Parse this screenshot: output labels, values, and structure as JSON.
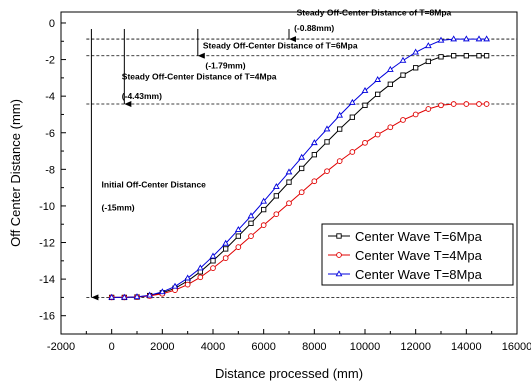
{
  "chart_data": {
    "type": "line",
    "title": "",
    "xlabel": "Distance processed (mm)",
    "ylabel": "Off Center Distance (mm)",
    "xlim": [
      -2000,
      16000
    ],
    "ylim": [
      -17,
      0.6
    ],
    "xticks": [
      -2000,
      0,
      2000,
      4000,
      6000,
      8000,
      10000,
      12000,
      14000,
      16000
    ],
    "yticks": [
      0,
      -2,
      -4,
      -6,
      -8,
      -10,
      -12,
      -14,
      -16
    ],
    "grid": false,
    "legend_position": "bottom-right",
    "series": [
      {
        "name": "Center Wave T=6Mpa",
        "color": "#000000",
        "marker": "square",
        "x": [
          0,
          500,
          1000,
          1500,
          2000,
          2500,
          3000,
          3500,
          4000,
          4500,
          5000,
          5500,
          6000,
          6500,
          7000,
          7500,
          8000,
          8500,
          9000,
          9500,
          10000,
          10500,
          11000,
          11500,
          12000,
          12500,
          13000,
          13500,
          14000,
          14500,
          14800
        ],
        "y": [
          -15.0,
          -15.0,
          -14.98,
          -14.9,
          -14.75,
          -14.5,
          -14.1,
          -13.6,
          -13.0,
          -12.35,
          -11.65,
          -10.95,
          -10.2,
          -9.45,
          -8.7,
          -7.95,
          -7.2,
          -6.5,
          -5.8,
          -5.15,
          -4.5,
          -3.9,
          -3.35,
          -2.85,
          -2.45,
          -2.1,
          -1.85,
          -1.79,
          -1.79,
          -1.79,
          -1.79
        ]
      },
      {
        "name": "Center Wave T=4Mpa",
        "color": "#e00000",
        "marker": "circle",
        "x": [
          0,
          500,
          1000,
          1500,
          2000,
          2500,
          3000,
          3500,
          4000,
          4500,
          5000,
          5500,
          6000,
          6500,
          7000,
          7500,
          8000,
          8500,
          9000,
          9500,
          10000,
          10500,
          11000,
          11500,
          12000,
          12500,
          13000,
          13500,
          14000,
          14500,
          14800
        ],
        "y": [
          -15.0,
          -15.0,
          -14.98,
          -14.92,
          -14.8,
          -14.6,
          -14.3,
          -13.9,
          -13.4,
          -12.85,
          -12.25,
          -11.65,
          -11.05,
          -10.45,
          -9.85,
          -9.25,
          -8.65,
          -8.1,
          -7.55,
          -7.05,
          -6.55,
          -6.1,
          -5.7,
          -5.3,
          -5.0,
          -4.7,
          -4.5,
          -4.43,
          -4.43,
          -4.43,
          -4.43
        ]
      },
      {
        "name": "Center Wave T=8Mpa",
        "color": "#0000dd",
        "marker": "triangle",
        "x": [
          0,
          500,
          1000,
          1500,
          2000,
          2500,
          3000,
          3500,
          4000,
          4500,
          5000,
          5500,
          6000,
          6500,
          7000,
          7500,
          8000,
          8500,
          9000,
          9500,
          10000,
          10500,
          11000,
          11500,
          12000,
          12500,
          13000,
          13500,
          14000,
          14500,
          14800
        ],
        "y": [
          -15.0,
          -15.0,
          -14.97,
          -14.88,
          -14.7,
          -14.4,
          -13.95,
          -13.4,
          -12.75,
          -12.05,
          -11.3,
          -10.55,
          -9.75,
          -8.95,
          -8.15,
          -7.35,
          -6.55,
          -5.8,
          -5.05,
          -4.35,
          -3.7,
          -3.1,
          -2.55,
          -2.05,
          -1.6,
          -1.25,
          -0.95,
          -0.88,
          -0.88,
          -0.88,
          -0.88
        ]
      }
    ],
    "reference_lines": [
      -0.88,
      -1.79,
      -4.43,
      -15
    ],
    "annotations": [
      {
        "text": "Steady Off-Center Distance of T=8Mpa",
        "x": 7300,
        "y": 0.4
      },
      {
        "text": "(-0.88mm)",
        "x": 7200,
        "y": -0.45
      },
      {
        "text": "Steady Off-Center Distance of T=6Mpa",
        "x": 3600,
        "y": -1.4
      },
      {
        "text": "(-1.79mm)",
        "x": 3700,
        "y": -2.5
      },
      {
        "text": "Steady Off-Center Distance of T=4Mpa",
        "x": 400,
        "y": -3.1
      },
      {
        "text": "(-4.43mm)",
        "x": 400,
        "y": -4.15
      },
      {
        "text": "Initial Off-Center Distance",
        "x": -400,
        "y": -9.0
      },
      {
        "text": "(-15mm)",
        "x": -400,
        "y": -10.25
      }
    ],
    "arrows": [
      {
        "x": 7000,
        "y_from": 0,
        "y_to": -0.88
      },
      {
        "x": 3400,
        "y_from": 0,
        "y_to": -1.79
      },
      {
        "x": 500,
        "y_from": 0,
        "y_to": -4.43
      },
      {
        "x": -800,
        "y_from": 0,
        "y_to": -15
      }
    ]
  }
}
